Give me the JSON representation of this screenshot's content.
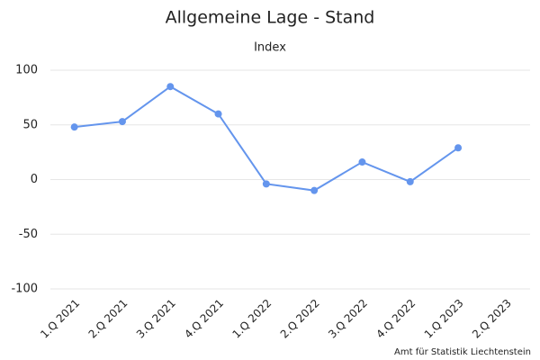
{
  "chart_data": {
    "type": "line",
    "title": "Allgemeine Lage - Stand",
    "subtitle": "Index",
    "source": "Amt für Statistik Liechtenstein",
    "categories": [
      "1.Q 2021",
      "2.Q 2021",
      "3.Q 2021",
      "4.Q 2021",
      "1.Q 2022",
      "2.Q 2022",
      "3.Q 2022",
      "4.Q 2022",
      "1.Q 2023",
      "2.Q 2023"
    ],
    "values": [
      48,
      53,
      85,
      60,
      -4,
      -10,
      16,
      -2,
      29,
      null
    ],
    "color": "#6495ed",
    "ylim": [
      -100,
      100
    ],
    "yticks": [
      100,
      50,
      0,
      -50,
      -100
    ],
    "grid": true
  }
}
